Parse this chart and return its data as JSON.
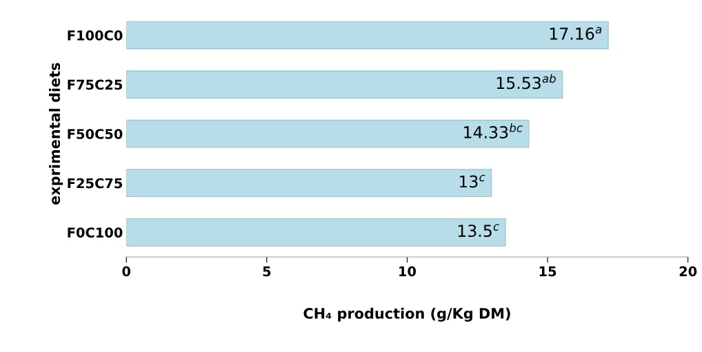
{
  "chart_data": {
    "type": "bar",
    "orientation": "horizontal",
    "categories": [
      "F100C0",
      "F75C25",
      "F50C50",
      "F25C75",
      "F0C100"
    ],
    "values": [
      17.16,
      15.53,
      14.33,
      13,
      13.5
    ],
    "value_labels": [
      "17.16$^{a}$",
      "15.53$^{ab}$",
      "14.33$^{bc}$",
      "13$^{c}$",
      "13.5$^{c}$"
    ],
    "color": "#b7dde8",
    "xlabel": "CH₄ production (g/Kg DM)",
    "ylabel": "exprimental diets",
    "xlim": [
      0,
      20
    ],
    "xticks": [
      0,
      5,
      10,
      15,
      20
    ],
    "grid": false,
    "legend": false
  }
}
